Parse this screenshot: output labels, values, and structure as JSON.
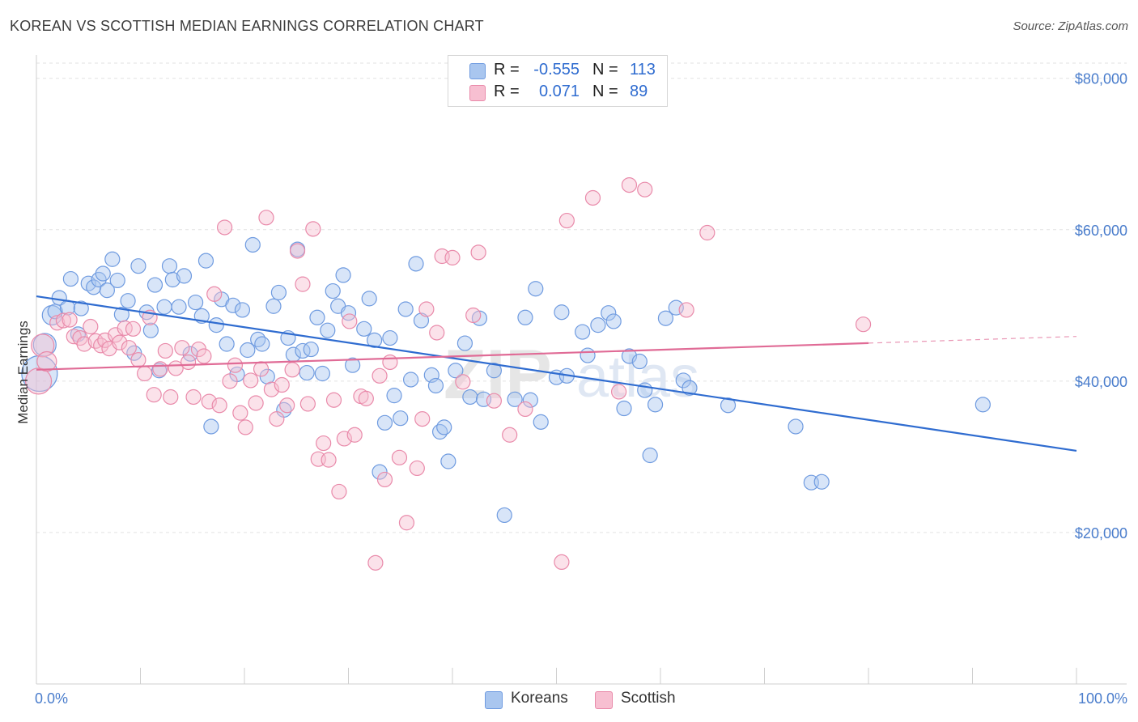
{
  "title": "KOREAN VS SCOTTISH MEDIAN EARNINGS CORRELATION CHART",
  "source": "Source: ZipAtlas.com",
  "watermark": "ZIPatlas",
  "legend": {
    "rows": [
      {
        "r_label": "R =",
        "r_value": "-0.555",
        "n_label": "N =",
        "n_value": "113",
        "color": "#a9c6ef",
        "border": "#6f9be0"
      },
      {
        "r_label": "R =",
        "r_value": "0.071",
        "n_label": "N =",
        "n_value": "89",
        "color": "#f7bfd1",
        "border": "#e98aaa"
      }
    ]
  },
  "bottom_legend": [
    {
      "label": "Koreans",
      "color": "#a9c6ef",
      "border": "#6f9be0"
    },
    {
      "label": "Scottish",
      "color": "#f7bfd1",
      "border": "#e98aaa"
    }
  ],
  "chart_data": {
    "type": "scatter",
    "title": "KOREAN VS SCOTTISH MEDIAN EARNINGS CORRELATION CHART",
    "xlabel": "",
    "ylabel": "Median Earnings",
    "xlim": [
      0,
      100
    ],
    "ylim": [
      0,
      82000
    ],
    "x_tick_labels": [
      "0.0%",
      "100.0%"
    ],
    "y_ticks": [
      20000,
      40000,
      60000,
      80000
    ],
    "y_tick_labels": [
      "$20,000",
      "$40,000",
      "$60,000",
      "$80,000"
    ],
    "grid": true,
    "legend_position": "top-center",
    "series": [
      {
        "name": "Koreans",
        "color": "#6f9be0",
        "fill": "#a9c6ef",
        "r": -0.555,
        "n": 113,
        "trend": {
          "x": [
            0,
            100
          ],
          "y": [
            51200,
            30800
          ],
          "dashed_from": null
        },
        "points": [
          [
            0.3,
            41000,
            22
          ],
          [
            0.8,
            44800,
            14
          ],
          [
            1.5,
            48700,
            12
          ],
          [
            1.8,
            49200,
            9
          ],
          [
            2.2,
            51000,
            9
          ],
          [
            3.0,
            49700,
            9
          ],
          [
            3.3,
            53500,
            9
          ],
          [
            4.0,
            46200,
            9
          ],
          [
            4.3,
            49600,
            9
          ],
          [
            5.0,
            52900,
            9
          ],
          [
            5.5,
            52400,
            9
          ],
          [
            6.0,
            53400,
            9
          ],
          [
            6.4,
            54200,
            9
          ],
          [
            6.8,
            52000,
            9
          ],
          [
            7.3,
            56100,
            9
          ],
          [
            7.8,
            53300,
            9
          ],
          [
            8.2,
            48800,
            9
          ],
          [
            8.8,
            50600,
            9
          ],
          [
            9.4,
            43700,
            9
          ],
          [
            9.8,
            55200,
            9
          ],
          [
            10.6,
            49100,
            9
          ],
          [
            11.0,
            46700,
            9
          ],
          [
            11.4,
            52700,
            9
          ],
          [
            11.8,
            41400,
            9
          ],
          [
            12.3,
            49800,
            9
          ],
          [
            12.8,
            55200,
            9
          ],
          [
            13.1,
            53400,
            9
          ],
          [
            13.7,
            49800,
            9
          ],
          [
            14.2,
            53900,
            9
          ],
          [
            14.8,
            43600,
            9
          ],
          [
            15.3,
            50400,
            9
          ],
          [
            15.9,
            48600,
            9
          ],
          [
            16.3,
            55900,
            9
          ],
          [
            16.8,
            34000,
            9
          ],
          [
            17.3,
            47400,
            9
          ],
          [
            17.8,
            50800,
            9
          ],
          [
            18.3,
            44900,
            9
          ],
          [
            18.9,
            50000,
            9
          ],
          [
            19.3,
            40900,
            9
          ],
          [
            19.8,
            49400,
            9
          ],
          [
            20.3,
            44100,
            9
          ],
          [
            20.8,
            58000,
            9
          ],
          [
            21.3,
            45500,
            9
          ],
          [
            21.7,
            44900,
            9
          ],
          [
            22.2,
            40600,
            9
          ],
          [
            22.8,
            49900,
            9
          ],
          [
            23.3,
            51700,
            9
          ],
          [
            23.8,
            36200,
            9
          ],
          [
            24.2,
            45700,
            9
          ],
          [
            24.7,
            43500,
            9
          ],
          [
            25.1,
            57400,
            9
          ],
          [
            25.6,
            44000,
            9
          ],
          [
            26.0,
            41100,
            9
          ],
          [
            26.4,
            44200,
            9
          ],
          [
            27.0,
            48400,
            9
          ],
          [
            27.5,
            41000,
            9
          ],
          [
            28.0,
            46700,
            9
          ],
          [
            28.5,
            51900,
            9
          ],
          [
            29.0,
            49900,
            9
          ],
          [
            29.5,
            54000,
            9
          ],
          [
            30.0,
            49000,
            9
          ],
          [
            30.4,
            42100,
            9
          ],
          [
            31.5,
            46900,
            9
          ],
          [
            32.0,
            50900,
            9
          ],
          [
            32.5,
            45400,
            9
          ],
          [
            33.0,
            28000,
            9
          ],
          [
            33.5,
            34500,
            9
          ],
          [
            34.0,
            45700,
            9
          ],
          [
            34.4,
            38100,
            9
          ],
          [
            35.0,
            35100,
            9
          ],
          [
            35.5,
            49500,
            9
          ],
          [
            36.0,
            40200,
            9
          ],
          [
            36.5,
            55500,
            9
          ],
          [
            37.0,
            48000,
            9
          ],
          [
            38.0,
            40800,
            9
          ],
          [
            38.4,
            39400,
            9
          ],
          [
            38.8,
            33300,
            9
          ],
          [
            39.2,
            33900,
            9
          ],
          [
            39.6,
            29400,
            9
          ],
          [
            40.3,
            41400,
            9
          ],
          [
            41.2,
            45000,
            9
          ],
          [
            41.7,
            37900,
            9
          ],
          [
            42.6,
            48300,
            9
          ],
          [
            43.0,
            37600,
            9
          ],
          [
            44.0,
            41400,
            9
          ],
          [
            45.0,
            22300,
            9
          ],
          [
            46.0,
            37600,
            9
          ],
          [
            47.0,
            48400,
            9
          ],
          [
            47.5,
            37500,
            9
          ],
          [
            48.0,
            52200,
            9
          ],
          [
            48.5,
            34600,
            9
          ],
          [
            50.0,
            40500,
            9
          ],
          [
            50.5,
            49100,
            9
          ],
          [
            51.0,
            40700,
            9
          ],
          [
            52.5,
            46500,
            9
          ],
          [
            53.0,
            43400,
            9
          ],
          [
            54.0,
            47400,
            9
          ],
          [
            55.0,
            49000,
            9
          ],
          [
            55.5,
            47900,
            9
          ],
          [
            56.5,
            36400,
            9
          ],
          [
            57.0,
            43300,
            9
          ],
          [
            58.0,
            42600,
            9
          ],
          [
            58.5,
            38800,
            9
          ],
          [
            59.0,
            30200,
            9
          ],
          [
            59.5,
            36900,
            9
          ],
          [
            60.5,
            48300,
            9
          ],
          [
            61.5,
            49700,
            9
          ],
          [
            62.2,
            40100,
            9
          ],
          [
            62.8,
            39100,
            9
          ],
          [
            66.5,
            36800,
            9
          ],
          [
            73.0,
            34000,
            9
          ],
          [
            74.5,
            26600,
            9
          ],
          [
            75.5,
            26700,
            9
          ],
          [
            91.0,
            36900,
            9
          ]
        ]
      },
      {
        "name": "Scottish",
        "color": "#e98aaa",
        "fill": "#f7bfd1",
        "r": 0.071,
        "n": 89,
        "trend": {
          "x": [
            0,
            100
          ],
          "y": [
            41500,
            45900
          ],
          "dashed_from": 80
        },
        "points": [
          [
            0.2,
            40000,
            16
          ],
          [
            0.6,
            44700,
            14
          ],
          [
            1.0,
            42600,
            12
          ],
          [
            2.0,
            47700,
            9
          ],
          [
            2.6,
            48000,
            9
          ],
          [
            3.2,
            48100,
            9
          ],
          [
            3.6,
            45900,
            9
          ],
          [
            4.2,
            45700,
            9
          ],
          [
            4.6,
            44900,
            9
          ],
          [
            5.2,
            47200,
            9
          ],
          [
            5.7,
            45300,
            9
          ],
          [
            6.2,
            44700,
            9
          ],
          [
            6.6,
            45400,
            9
          ],
          [
            7.0,
            44300,
            9
          ],
          [
            7.6,
            46100,
            9
          ],
          [
            8.0,
            45100,
            9
          ],
          [
            8.5,
            47000,
            9
          ],
          [
            8.9,
            44400,
            9
          ],
          [
            9.3,
            46900,
            9
          ],
          [
            9.8,
            42800,
            9
          ],
          [
            10.4,
            41000,
            9
          ],
          [
            10.9,
            48400,
            9
          ],
          [
            11.3,
            38200,
            9
          ],
          [
            11.9,
            41600,
            9
          ],
          [
            12.4,
            44000,
            9
          ],
          [
            12.9,
            37900,
            9
          ],
          [
            13.4,
            41700,
            9
          ],
          [
            14.0,
            44400,
            9
          ],
          [
            14.6,
            42500,
            9
          ],
          [
            15.1,
            37900,
            9
          ],
          [
            15.6,
            44200,
            9
          ],
          [
            16.1,
            43300,
            9
          ],
          [
            16.6,
            37300,
            9
          ],
          [
            17.1,
            51500,
            9
          ],
          [
            17.6,
            36800,
            9
          ],
          [
            18.1,
            60300,
            9
          ],
          [
            18.6,
            40000,
            9
          ],
          [
            19.1,
            42100,
            9
          ],
          [
            19.6,
            35800,
            9
          ],
          [
            20.1,
            33900,
            9
          ],
          [
            20.6,
            40100,
            9
          ],
          [
            21.1,
            37100,
            9
          ],
          [
            21.6,
            41600,
            9
          ],
          [
            22.1,
            61600,
            9
          ],
          [
            22.6,
            38900,
            9
          ],
          [
            23.1,
            35000,
            9
          ],
          [
            23.6,
            39500,
            9
          ],
          [
            24.1,
            36800,
            9
          ],
          [
            24.6,
            41500,
            9
          ],
          [
            25.1,
            57200,
            9
          ],
          [
            25.6,
            52800,
            9
          ],
          [
            26.1,
            37000,
            9
          ],
          [
            26.6,
            60100,
            9
          ],
          [
            27.1,
            29700,
            9
          ],
          [
            27.6,
            31800,
            9
          ],
          [
            28.1,
            29600,
            9
          ],
          [
            28.6,
            37500,
            9
          ],
          [
            29.1,
            25400,
            9
          ],
          [
            29.6,
            32400,
            9
          ],
          [
            30.1,
            47900,
            9
          ],
          [
            30.6,
            32900,
            9
          ],
          [
            31.2,
            38000,
            9
          ],
          [
            31.7,
            37700,
            9
          ],
          [
            32.6,
            16000,
            9
          ],
          [
            33.0,
            40700,
            9
          ],
          [
            33.5,
            27000,
            9
          ],
          [
            34.0,
            42500,
            9
          ],
          [
            34.9,
            29900,
            9
          ],
          [
            35.6,
            21300,
            9
          ],
          [
            36.6,
            28500,
            9
          ],
          [
            37.1,
            35000,
            9
          ],
          [
            37.5,
            49500,
            9
          ],
          [
            38.5,
            46400,
            9
          ],
          [
            39.0,
            56500,
            9
          ],
          [
            40.0,
            56300,
            9
          ],
          [
            41.0,
            39900,
            9
          ],
          [
            42.0,
            48700,
            9
          ],
          [
            42.5,
            57000,
            9
          ],
          [
            44.0,
            37400,
            9
          ],
          [
            45.5,
            32900,
            9
          ],
          [
            47.0,
            36300,
            9
          ],
          [
            50.5,
            16100,
            9
          ],
          [
            51.0,
            61200,
            9
          ],
          [
            53.5,
            64200,
            9
          ],
          [
            56.0,
            38600,
            9
          ],
          [
            57.0,
            65900,
            9
          ],
          [
            58.5,
            65300,
            9
          ],
          [
            62.5,
            49400,
            9
          ],
          [
            64.5,
            59600,
            9
          ],
          [
            79.5,
            47500,
            9
          ]
        ]
      }
    ]
  }
}
